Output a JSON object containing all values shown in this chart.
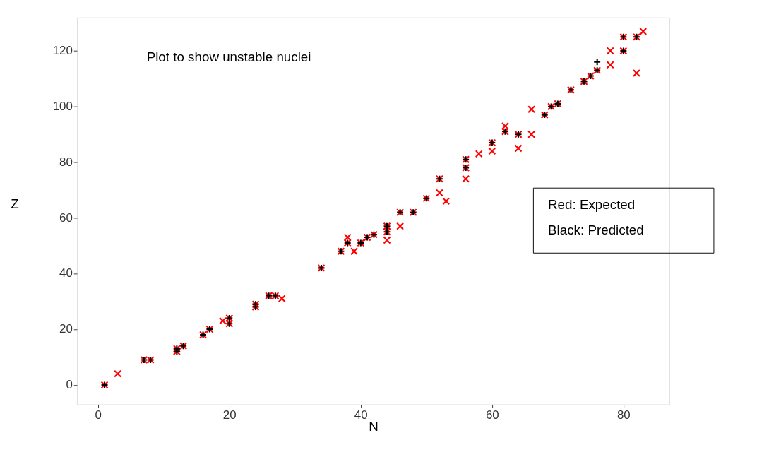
{
  "chart_data": {
    "type": "scatter",
    "title": "Plot to show unstable nuclei",
    "xlabel": "N",
    "ylabel": "Z",
    "annotations": [
      "Red: Expected",
      "Black: Predicted"
    ],
    "xlim": [
      -3.2,
      87
    ],
    "ylim": [
      -7,
      132
    ],
    "xticks": [
      0,
      20,
      40,
      60,
      80
    ],
    "yticks": [
      0,
      20,
      40,
      60,
      80,
      100,
      120
    ],
    "grid": false,
    "series": [
      {
        "color": "#ff0000",
        "marker": "cross",
        "x": [
          1,
          3,
          7,
          8,
          12,
          13,
          12,
          16,
          17,
          19,
          20,
          20,
          24,
          24,
          26,
          27,
          28,
          34,
          37,
          38,
          38,
          39,
          40,
          41,
          42,
          44,
          44,
          44,
          46,
          46,
          48,
          50,
          52,
          52,
          53,
          56,
          56,
          56,
          58,
          60,
          60,
          62,
          62,
          64,
          64,
          66,
          66,
          68,
          69,
          70,
          72,
          74,
          75,
          76,
          78,
          78,
          80,
          80,
          82,
          82,
          83
        ],
        "values": [
          0,
          4,
          9,
          9,
          13,
          14,
          12,
          18,
          20,
          23,
          24,
          22,
          29,
          28,
          32,
          32,
          31,
          42,
          48,
          51,
          53,
          48,
          51,
          53,
          54,
          57,
          55,
          52,
          57,
          62,
          62,
          67,
          74,
          69,
          66,
          78,
          81,
          74,
          83,
          87,
          84,
          93,
          91,
          90,
          85,
          90,
          99,
          97,
          100,
          101,
          106,
          109,
          111,
          113,
          115,
          120,
          120,
          125,
          112,
          125,
          127
        ]
      },
      {
        "color": "#000000",
        "marker": "plus",
        "x": [
          1,
          7,
          8,
          12,
          13,
          12,
          16,
          17,
          20,
          20,
          24,
          24,
          26,
          27,
          34,
          37,
          38,
          40,
          41,
          42,
          44,
          44,
          46,
          48,
          50,
          52,
          56,
          56,
          60,
          62,
          64,
          68,
          69,
          70,
          72,
          74,
          75,
          76,
          76,
          80,
          80,
          82
        ],
        "values": [
          0,
          9,
          9,
          13,
          14,
          12,
          18,
          20,
          24,
          22,
          29,
          28,
          32,
          32,
          42,
          48,
          51,
          51,
          53,
          54,
          57,
          55,
          62,
          62,
          67,
          74,
          78,
          81,
          87,
          91,
          90,
          97,
          100,
          101,
          106,
          109,
          111,
          113,
          116,
          120,
          125,
          125
        ]
      }
    ]
  }
}
